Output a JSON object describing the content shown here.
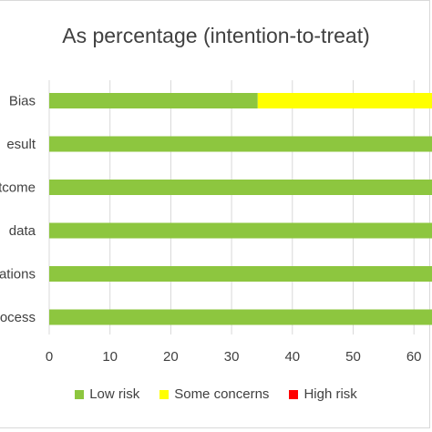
{
  "chart_data": {
    "type": "bar",
    "orientation": "horizontal",
    "stacked": true,
    "title": "As percentage (intention-to-treat)",
    "categories": [
      "Bias",
      "esult",
      "tcome",
      "data",
      "ations",
      "ocess"
    ],
    "series": [
      {
        "name": "Low risk",
        "color": "#8DC63F",
        "values": [
          34.3,
          100,
          100,
          100,
          100,
          100
        ]
      },
      {
        "name": "Some concerns",
        "color": "#FFFF00",
        "values": [
          65.7,
          0,
          0,
          0,
          0,
          0
        ]
      },
      {
        "name": "High risk",
        "color": "#FF0000",
        "values": [
          0,
          0,
          0,
          0,
          0,
          0
        ]
      }
    ],
    "x_ticks": [
      "0",
      "10",
      "20",
      "30",
      "40",
      "50",
      "60"
    ],
    "xlim": [
      0,
      100
    ],
    "grid": true,
    "legend_position": "bottom"
  }
}
